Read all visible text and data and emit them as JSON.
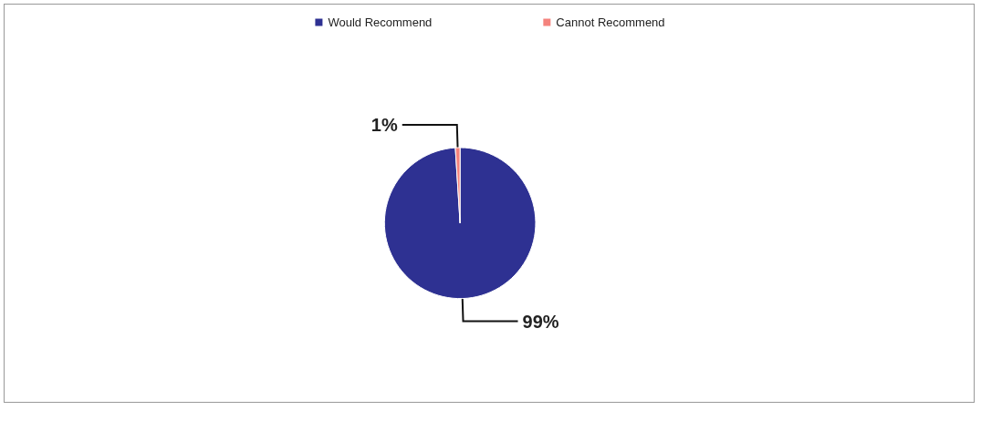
{
  "chart_data": {
    "type": "pie",
    "categories": [
      "Would Recommend",
      "Cannot Recommend"
    ],
    "values": [
      99,
      1
    ],
    "colors": [
      "#2e3192",
      "#f4837d"
    ],
    "value_labels": [
      "99%",
      "1%"
    ],
    "legend": "top"
  }
}
